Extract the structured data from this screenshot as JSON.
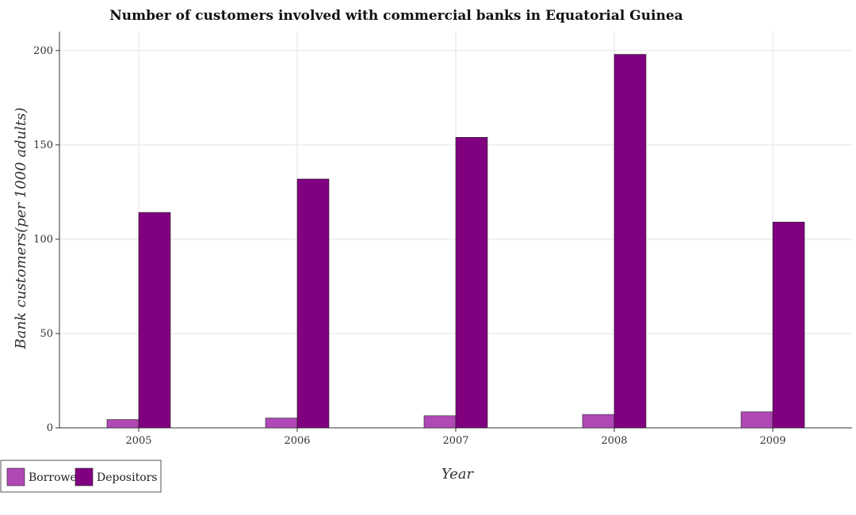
{
  "chart_data": {
    "type": "bar",
    "title": "Number of customers involved with commercial banks in Equatorial Guinea",
    "xlabel": "Year",
    "ylabel": "Bank customers(per 1000 adults)",
    "categories": [
      "2005",
      "2006",
      "2007",
      "2008",
      "2009"
    ],
    "ylim": [
      0,
      210
    ],
    "yticks": [
      0,
      50,
      100,
      150,
      200
    ],
    "grid": true,
    "legend_position": "bottom-left",
    "series": [
      {
        "name": "Borrowers",
        "color": "#b048b5",
        "values": [
          4.4,
          5.2,
          6.4,
          7.1,
          8.5
        ]
      },
      {
        "name": "Depositors",
        "color": "#800080",
        "values": [
          114.2,
          131.9,
          154.0,
          198.0,
          109.1
        ]
      }
    ]
  }
}
